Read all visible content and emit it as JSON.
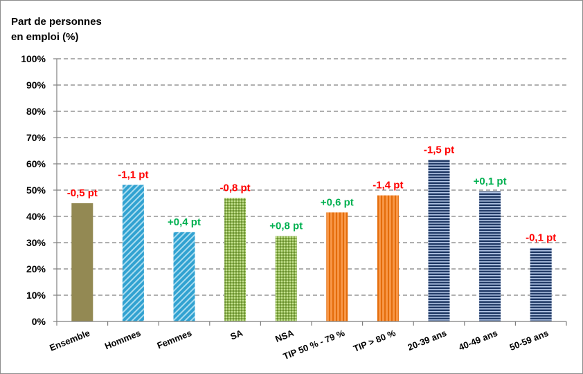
{
  "chart_data": {
    "type": "bar",
    "title": "",
    "ylabel_lines": [
      "Part de personnes",
      "en emploi (%)"
    ],
    "xlabel": "",
    "ylim": [
      0,
      100
    ],
    "ytick_step": 10,
    "ytick_format": "{v}%",
    "grid": "horizontal-dashed",
    "categories": [
      "Ensemble",
      "Hommes",
      "Femmes",
      "SA",
      "NSA",
      "TIP 50 % - 79 %",
      "TIP > 80 %",
      "20-39 ans",
      "40-49 ans",
      "50-59 ans"
    ],
    "values": [
      45,
      52,
      34,
      47,
      32.5,
      41.5,
      48,
      61.5,
      49.5,
      28
    ],
    "annotations": [
      "-0,5 pt",
      "-1,1 pt",
      "+0,4 pt",
      "-0,8 pt",
      "+0,8 pt",
      "+0,6 pt",
      "-1,4 pt",
      "-1,5 pt",
      "+0,1 pt",
      "-0,1 pt"
    ],
    "bar_styles": [
      "olive",
      "blue-diag",
      "blue-diag",
      "green-cross",
      "green-cross",
      "orange-vert",
      "orange-vert",
      "navy-horiz",
      "navy-horiz",
      "navy-horiz"
    ],
    "colors": {
      "negative": "#ff0000",
      "positive": "#00b050",
      "olive": "#938953",
      "blue": "#31a2d1",
      "green": "#8fb84e",
      "orange": "#f79646",
      "navy": "#1f3864"
    }
  }
}
